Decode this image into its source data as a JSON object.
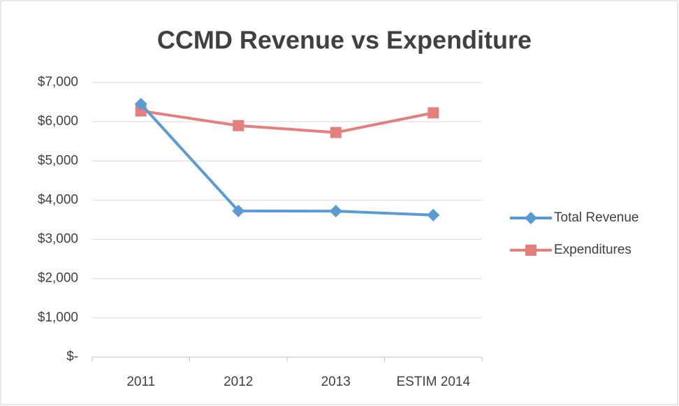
{
  "chart_data": {
    "type": "line",
    "title": "CCMD Revenue vs Expenditure",
    "categories": [
      "2011",
      "2012",
      "2013",
      "ESTIM 2014"
    ],
    "series": [
      {
        "name": "Total Revenue",
        "color": "#5b9bd5",
        "marker": "diamond",
        "values": [
          6450,
          3725,
          3720,
          3620
        ]
      },
      {
        "name": "Expenditures",
        "color": "#e3807d",
        "marker": "square",
        "values": [
          6275,
          5900,
          5725,
          6225
        ]
      }
    ],
    "ylim": [
      0,
      7000
    ],
    "yticks": [
      {
        "value": 0,
        "label": "$-"
      },
      {
        "value": 1000,
        "label": "$1,000"
      },
      {
        "value": 2000,
        "label": "$2,000"
      },
      {
        "value": 3000,
        "label": "$3,000"
      },
      {
        "value": 4000,
        "label": "$4,000"
      },
      {
        "value": 5000,
        "label": "$5,000"
      },
      {
        "value": 6000,
        "label": "$6,000"
      },
      {
        "value": 7000,
        "label": "$7,000"
      }
    ],
    "grid": true,
    "legend": "right"
  }
}
